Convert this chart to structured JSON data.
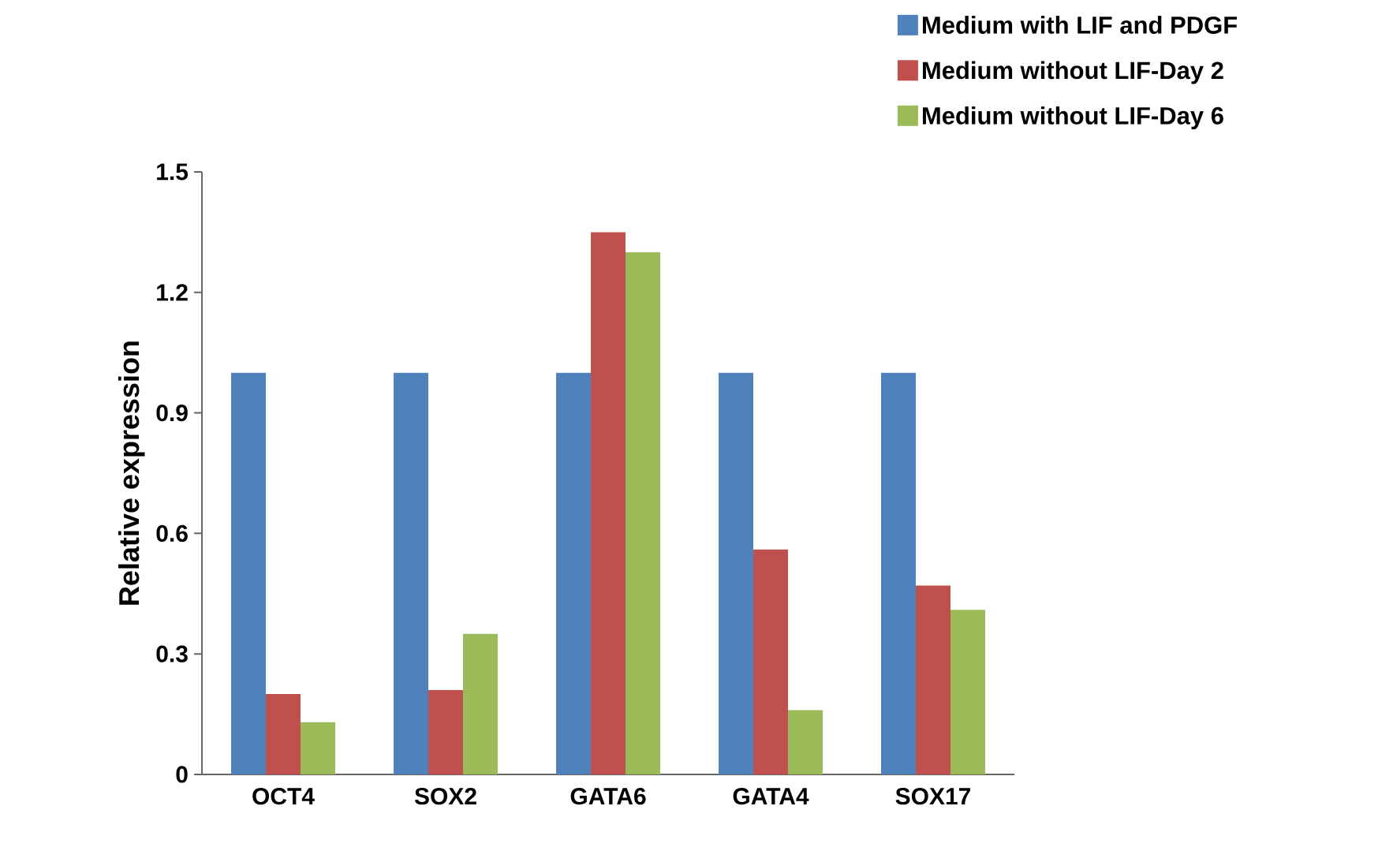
{
  "chart_data": {
    "type": "bar",
    "ylabel": "Relative expression",
    "categories": [
      "OCT4",
      "SOX2",
      "GATA6",
      "GATA4",
      "SOX17"
    ],
    "series": [
      {
        "name": "Medium with LIF and PDGF",
        "color": "#4f81bd",
        "values": [
          1.0,
          1.0,
          1.0,
          1.0,
          1.0
        ]
      },
      {
        "name": "Medium without LIF-Day 2",
        "color": "#c0504d",
        "values": [
          0.2,
          0.21,
          1.35,
          0.56,
          0.47
        ]
      },
      {
        "name": "Medium without LIF-Day 6",
        "color": "#9bbb59",
        "values": [
          0.13,
          0.35,
          1.3,
          0.16,
          0.41
        ]
      }
    ],
    "ylim": [
      0,
      1.5
    ],
    "yticks": [
      0,
      0.3,
      0.6,
      0.9,
      1.2,
      1.5
    ],
    "grid": false,
    "legend": "top right"
  }
}
